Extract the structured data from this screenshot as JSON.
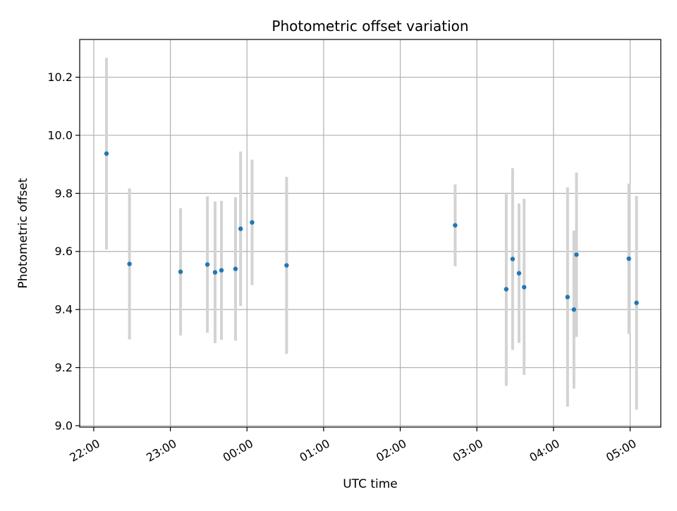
{
  "chart_data": {
    "type": "scatter",
    "title": "Photometric offset variation",
    "xlabel": "UTC time",
    "ylabel": "Photometric offset",
    "x_axis": {
      "kind": "time",
      "range": [
        "21:49",
        "05:24"
      ],
      "ticks": [
        "22:00",
        "23:00",
        "00:00",
        "01:00",
        "02:00",
        "03:00",
        "04:00",
        "05:00"
      ]
    },
    "y_axis": {
      "range": [
        8.995,
        10.33
      ],
      "ticks": [
        "9.0",
        "9.2",
        "9.4",
        "9.6",
        "9.8",
        "10.0",
        "10.2"
      ]
    },
    "grid": true,
    "colors": {
      "marker": "#1f77b4",
      "errorbar": "#d3d3d3",
      "grid": "#b0b0b0"
    },
    "points": [
      {
        "time": "22:10",
        "y": 9.937,
        "ylow": 9.607,
        "yhigh": 10.267
      },
      {
        "time": "22:28",
        "y": 9.557,
        "ylow": 9.297,
        "yhigh": 9.817
      },
      {
        "time": "23:08",
        "y": 9.53,
        "ylow": 9.311,
        "yhigh": 9.749
      },
      {
        "time": "23:29",
        "y": 9.555,
        "ylow": 9.32,
        "yhigh": 9.79
      },
      {
        "time": "23:35",
        "y": 9.528,
        "ylow": 9.284,
        "yhigh": 9.772
      },
      {
        "time": "23:40",
        "y": 9.535,
        "ylow": 9.296,
        "yhigh": 9.774
      },
      {
        "time": "23:51",
        "y": 9.54,
        "ylow": 9.293,
        "yhigh": 9.787
      },
      {
        "time": "23:55",
        "y": 9.678,
        "ylow": 9.412,
        "yhigh": 9.944
      },
      {
        "time": "00:04",
        "y": 9.7,
        "ylow": 9.484,
        "yhigh": 9.916
      },
      {
        "time": "00:31",
        "y": 9.552,
        "ylow": 9.247,
        "yhigh": 9.857
      },
      {
        "time": "02:43",
        "y": 9.69,
        "ylow": 9.549,
        "yhigh": 9.831
      },
      {
        "time": "03:23",
        "y": 9.47,
        "ylow": 9.137,
        "yhigh": 9.803
      },
      {
        "time": "03:28",
        "y": 9.574,
        "ylow": 9.261,
        "yhigh": 9.887
      },
      {
        "time": "03:33",
        "y": 9.525,
        "ylow": 9.285,
        "yhigh": 9.765
      },
      {
        "time": "03:37",
        "y": 9.477,
        "ylow": 9.175,
        "yhigh": 9.781
      },
      {
        "time": "04:11",
        "y": 9.443,
        "ylow": 9.065,
        "yhigh": 9.821
      },
      {
        "time": "04:16",
        "y": 9.4,
        "ylow": 9.128,
        "yhigh": 9.672
      },
      {
        "time": "04:18",
        "y": 9.589,
        "ylow": 9.306,
        "yhigh": 9.872
      },
      {
        "time": "04:59",
        "y": 9.575,
        "ylow": 9.316,
        "yhigh": 9.834
      },
      {
        "time": "05:05",
        "y": 9.423,
        "ylow": 9.055,
        "yhigh": 9.791
      }
    ]
  }
}
